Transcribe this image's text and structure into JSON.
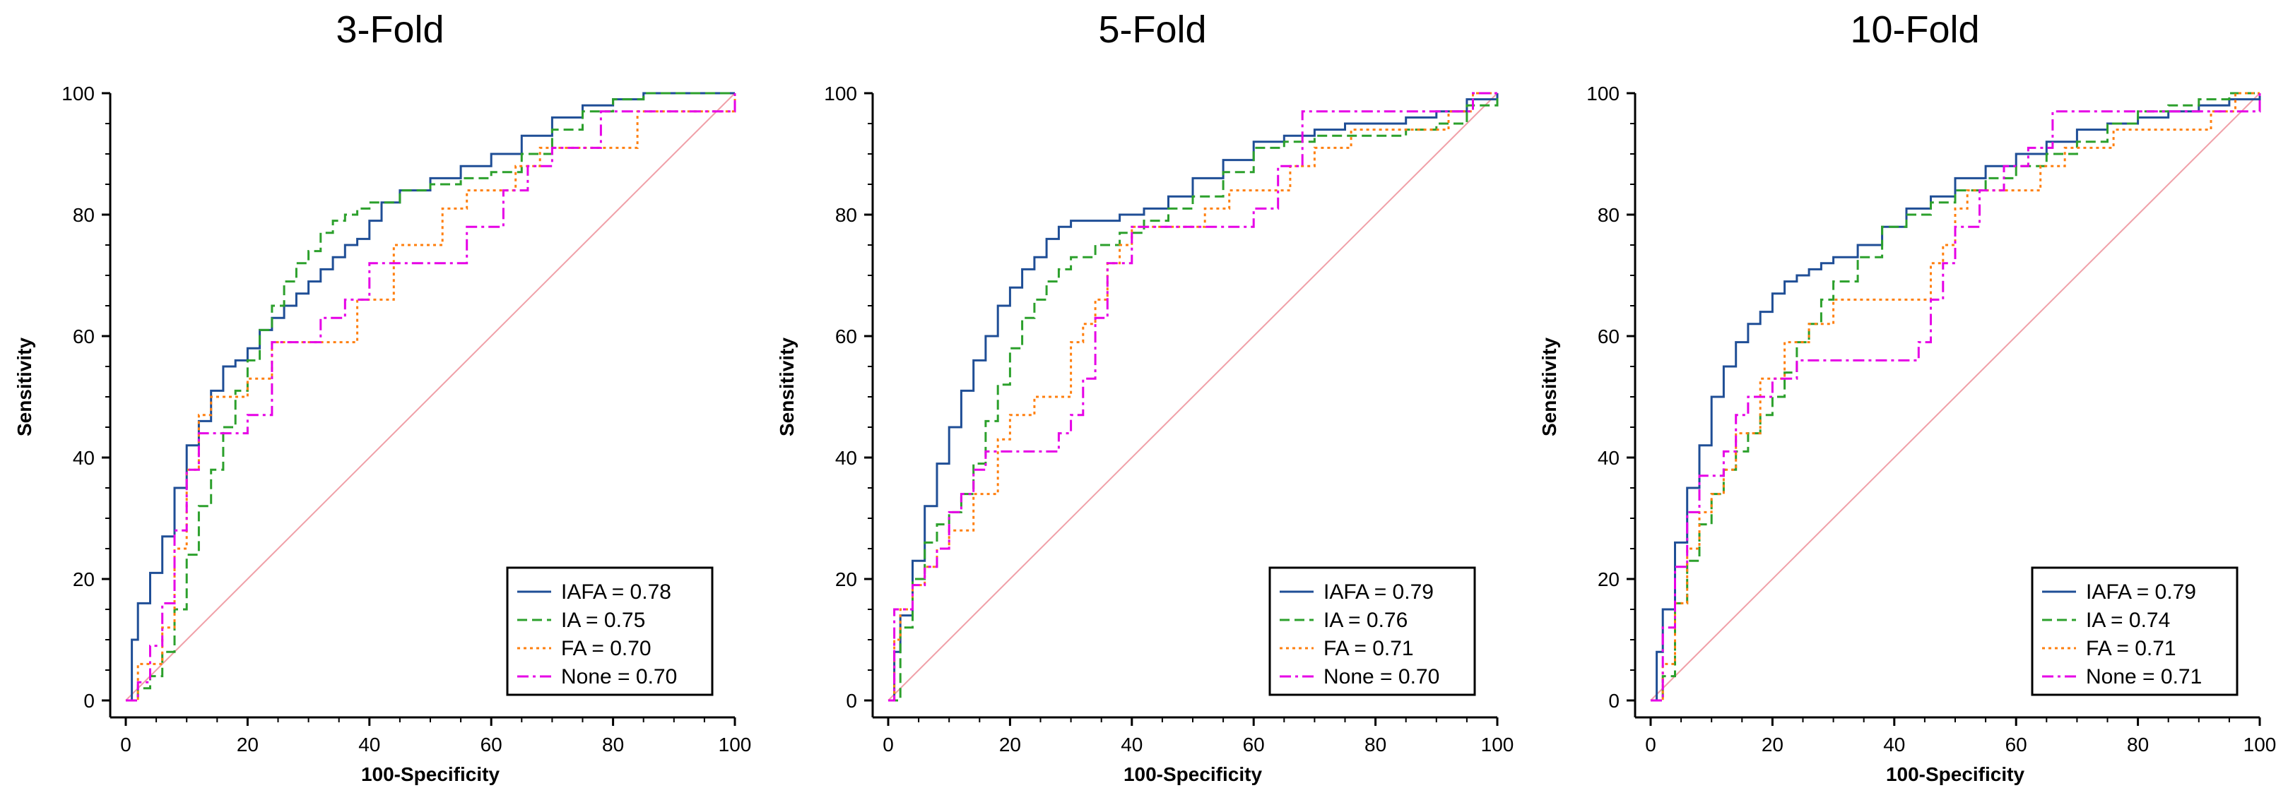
{
  "chart_data": [
    {
      "type": "line",
      "title": "3-Fold",
      "xlabel": "100-Specificity",
      "ylabel": "Sensitivity",
      "xlim": [
        0,
        100
      ],
      "ylim": [
        0,
        100
      ],
      "xticks": [
        "0",
        "20",
        "40",
        "60",
        "80",
        "100"
      ],
      "yticks": [
        "0",
        "20",
        "40",
        "60",
        "80",
        "100"
      ],
      "grid": false,
      "legend_position": "bottom-right",
      "series": [
        {
          "name": "IAFA",
          "auc": "0.78",
          "legend": "IAFA = 0.78",
          "color": "#1f4e96",
          "dash": "solid",
          "x": [
            0,
            1,
            2,
            4,
            6,
            8,
            10,
            12,
            14,
            16,
            18,
            20,
            22,
            24,
            26,
            28,
            30,
            32,
            34,
            36,
            38,
            40,
            42,
            45,
            50,
            55,
            60,
            65,
            70,
            75,
            80,
            85,
            90,
            95,
            100
          ],
          "y": [
            0,
            10,
            16,
            21,
            27,
            35,
            42,
            46,
            51,
            55,
            56,
            58,
            61,
            63,
            65,
            67,
            69,
            71,
            73,
            75,
            76,
            79,
            82,
            84,
            86,
            88,
            90,
            93,
            96,
            98,
            99,
            100,
            100,
            100,
            100
          ]
        },
        {
          "name": "IA",
          "auc": "0.75",
          "legend": "IA = 0.75",
          "color": "#2ca02c",
          "dash": "dashed",
          "x": [
            0,
            2,
            4,
            6,
            8,
            10,
            12,
            14,
            16,
            18,
            20,
            22,
            24,
            26,
            28,
            30,
            32,
            34,
            36,
            38,
            40,
            45,
            50,
            55,
            60,
            65,
            70,
            75,
            80,
            85,
            90,
            95,
            100
          ],
          "y": [
            0,
            2,
            4,
            8,
            15,
            24,
            32,
            38,
            45,
            51,
            56,
            61,
            65,
            69,
            72,
            74,
            77,
            79,
            80,
            81,
            82,
            84,
            85,
            86,
            87,
            90,
            94,
            97,
            99,
            100,
            100,
            100,
            100
          ]
        },
        {
          "name": "FA",
          "auc": "0.70",
          "legend": "FA = 0.70",
          "color": "#ff7f0e",
          "dash": "dotted",
          "x": [
            0,
            2,
            4,
            6,
            8,
            10,
            12,
            14,
            16,
            20,
            24,
            28,
            32,
            36,
            38,
            40,
            44,
            48,
            52,
            56,
            60,
            64,
            68,
            72,
            76,
            80,
            84,
            88,
            92,
            96,
            100
          ],
          "y": [
            0,
            6,
            6,
            12,
            25,
            38,
            47,
            50,
            50,
            53,
            59,
            59,
            59,
            59,
            66,
            66,
            75,
            75,
            81,
            84,
            84,
            88,
            91,
            91,
            91,
            91,
            97,
            97,
            97,
            97,
            100
          ]
        },
        {
          "name": "None",
          "auc": "0.70",
          "legend": "None = 0.70",
          "color": "#e600e6",
          "dash": "dashdot",
          "x": [
            0,
            2,
            4,
            6,
            8,
            10,
            12,
            14,
            16,
            20,
            24,
            28,
            32,
            36,
            40,
            44,
            48,
            52,
            56,
            58,
            62,
            66,
            70,
            74,
            78,
            82,
            86,
            90,
            94,
            98,
            100
          ],
          "y": [
            0,
            3,
            9,
            16,
            28,
            38,
            44,
            44,
            44,
            47,
            59,
            59,
            63,
            66,
            72,
            72,
            72,
            72,
            78,
            78,
            84,
            88,
            91,
            91,
            97,
            97,
            97,
            97,
            97,
            97,
            100
          ]
        }
      ]
    },
    {
      "type": "line",
      "title": "5-Fold",
      "xlabel": "100-Specificity",
      "ylabel": "Sensitivity",
      "xlim": [
        0,
        100
      ],
      "ylim": [
        0,
        100
      ],
      "xticks": [
        "0",
        "20",
        "40",
        "60",
        "80",
        "100"
      ],
      "yticks": [
        "0",
        "20",
        "40",
        "60",
        "80",
        "100"
      ],
      "grid": false,
      "legend_position": "bottom-right",
      "series": [
        {
          "name": "IAFA",
          "auc": "0.79",
          "legend": "IAFA = 0.79",
          "color": "#1f4e96",
          "dash": "solid",
          "x": [
            0,
            1,
            2,
            4,
            6,
            8,
            10,
            12,
            14,
            16,
            18,
            20,
            22,
            24,
            26,
            28,
            30,
            34,
            38,
            42,
            46,
            50,
            55,
            60,
            65,
            70,
            75,
            80,
            85,
            90,
            95,
            100
          ],
          "y": [
            0,
            8,
            14,
            23,
            32,
            39,
            45,
            51,
            56,
            60,
            65,
            68,
            71,
            73,
            76,
            78,
            79,
            79,
            80,
            81,
            83,
            86,
            89,
            92,
            93,
            94,
            95,
            95,
            96,
            97,
            99,
            100
          ]
        },
        {
          "name": "IA",
          "auc": "0.76",
          "legend": "IA = 0.76",
          "color": "#2ca02c",
          "dash": "dashed",
          "x": [
            0,
            2,
            4,
            6,
            8,
            10,
            12,
            14,
            16,
            18,
            20,
            22,
            24,
            26,
            28,
            30,
            34,
            38,
            42,
            46,
            50,
            55,
            60,
            65,
            70,
            75,
            80,
            85,
            90,
            95,
            100
          ],
          "y": [
            0,
            12,
            20,
            26,
            29,
            31,
            34,
            39,
            46,
            52,
            58,
            63,
            66,
            69,
            71,
            73,
            75,
            77,
            79,
            81,
            83,
            87,
            91,
            92,
            93,
            93,
            93,
            94,
            95,
            98,
            100
          ]
        },
        {
          "name": "FA",
          "auc": "0.71",
          "legend": "FA = 0.71",
          "color": "#ff7f0e",
          "dash": "dotted",
          "x": [
            0,
            1,
            2,
            4,
            6,
            8,
            10,
            14,
            18,
            20,
            24,
            28,
            30,
            32,
            34,
            36,
            38,
            40,
            44,
            48,
            52,
            56,
            60,
            64,
            66,
            70,
            76,
            80,
            84,
            88,
            92,
            96,
            100
          ],
          "y": [
            0,
            10,
            15,
            19,
            22,
            25,
            28,
            34,
            43,
            47,
            50,
            50,
            59,
            62,
            66,
            72,
            75,
            78,
            78,
            78,
            81,
            84,
            84,
            84,
            88,
            91,
            94,
            94,
            94,
            94,
            97,
            100,
            100
          ]
        },
        {
          "name": "None",
          "auc": "0.70",
          "legend": "None = 0.70",
          "color": "#e600e6",
          "dash": "dashdot",
          "x": [
            0,
            1,
            2,
            4,
            6,
            8,
            10,
            12,
            14,
            16,
            20,
            24,
            28,
            30,
            32,
            34,
            36,
            40,
            44,
            48,
            52,
            56,
            60,
            64,
            68,
            72,
            76,
            80,
            84,
            88,
            92,
            96,
            100
          ],
          "y": [
            0,
            15,
            15,
            19,
            22,
            25,
            31,
            34,
            38,
            41,
            41,
            41,
            44,
            47,
            53,
            63,
            72,
            78,
            78,
            78,
            78,
            78,
            81,
            88,
            97,
            97,
            97,
            97,
            97,
            97,
            97,
            100,
            100
          ]
        }
      ]
    },
    {
      "type": "line",
      "title": "10-Fold",
      "xlabel": "100-Specificity",
      "ylabel": "Sensitivity",
      "xlim": [
        0,
        100
      ],
      "ylim": [
        0,
        100
      ],
      "xticks": [
        "0",
        "20",
        "40",
        "60",
        "80",
        "100"
      ],
      "yticks": [
        "0",
        "20",
        "40",
        "60",
        "80",
        "100"
      ],
      "grid": false,
      "legend_position": "bottom-right",
      "series": [
        {
          "name": "IAFA",
          "auc": "0.79",
          "legend": "IAFA = 0.79",
          "color": "#1f4e96",
          "dash": "solid",
          "x": [
            0,
            1,
            2,
            4,
            6,
            8,
            10,
            12,
            14,
            16,
            18,
            20,
            22,
            24,
            26,
            28,
            30,
            34,
            38,
            42,
            46,
            50,
            55,
            60,
            65,
            70,
            75,
            80,
            85,
            90,
            95,
            100
          ],
          "y": [
            0,
            8,
            15,
            26,
            35,
            42,
            50,
            55,
            59,
            62,
            64,
            67,
            69,
            70,
            71,
            72,
            73,
            75,
            78,
            81,
            83,
            86,
            88,
            90,
            92,
            94,
            95,
            96,
            97,
            98,
            99,
            100
          ]
        },
        {
          "name": "IA",
          "auc": "0.74",
          "legend": "IA = 0.74",
          "color": "#2ca02c",
          "dash": "dashed",
          "x": [
            0,
            2,
            4,
            6,
            8,
            10,
            12,
            14,
            16,
            18,
            20,
            22,
            24,
            26,
            28,
            30,
            34,
            38,
            42,
            46,
            50,
            55,
            60,
            65,
            70,
            75,
            80,
            85,
            90,
            95,
            100
          ],
          "y": [
            0,
            4,
            16,
            23,
            29,
            34,
            38,
            41,
            44,
            47,
            50,
            54,
            59,
            62,
            66,
            69,
            73,
            78,
            80,
            82,
            84,
            86,
            88,
            90,
            92,
            95,
            97,
            98,
            99,
            100,
            100
          ]
        },
        {
          "name": "FA",
          "auc": "0.71",
          "legend": "FA = 0.71",
          "color": "#ff7f0e",
          "dash": "dotted",
          "x": [
            0,
            2,
            4,
            6,
            8,
            10,
            12,
            14,
            18,
            22,
            26,
            30,
            34,
            38,
            42,
            46,
            48,
            50,
            52,
            56,
            60,
            64,
            68,
            72,
            76,
            80,
            84,
            88,
            92,
            96,
            100
          ],
          "y": [
            0,
            6,
            16,
            25,
            31,
            34,
            38,
            44,
            53,
            59,
            62,
            66,
            66,
            66,
            66,
            72,
            75,
            81,
            84,
            84,
            84,
            88,
            91,
            91,
            94,
            94,
            94,
            94,
            97,
            100,
            100
          ]
        },
        {
          "name": "None",
          "auc": "0.71",
          "legend": "None = 0.71",
          "color": "#e600e6",
          "dash": "dashdot",
          "x": [
            0,
            2,
            4,
            6,
            8,
            10,
            12,
            14,
            16,
            20,
            24,
            26,
            30,
            34,
            38,
            42,
            44,
            46,
            48,
            50,
            54,
            58,
            62,
            66,
            70,
            74,
            78,
            82,
            86,
            90,
            94,
            98,
            100
          ],
          "y": [
            0,
            12,
            22,
            31,
            37,
            37,
            41,
            47,
            50,
            53,
            56,
            56,
            56,
            56,
            56,
            56,
            59,
            66,
            72,
            78,
            84,
            88,
            91,
            97,
            97,
            97,
            97,
            97,
            97,
            97,
            97,
            97,
            100
          ]
        }
      ]
    }
  ]
}
